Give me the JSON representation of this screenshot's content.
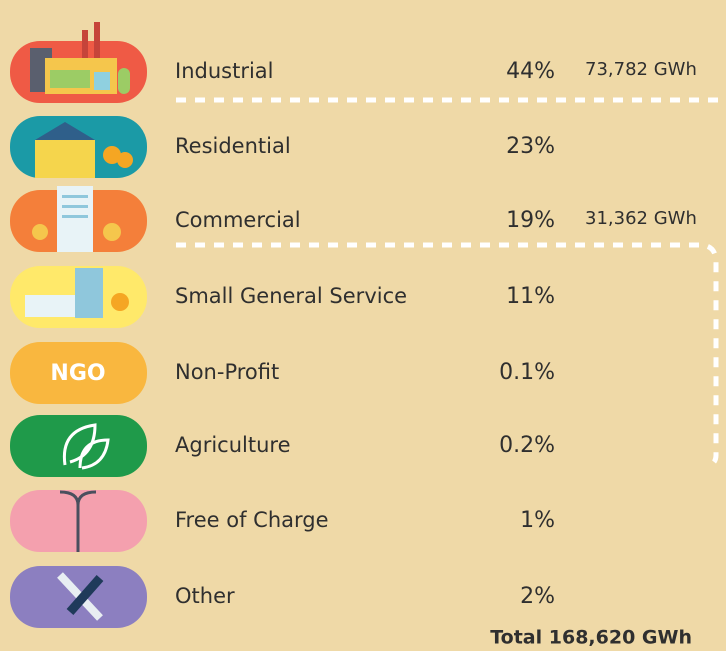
{
  "icons": {
    "ngo_text": "NGO"
  },
  "rows": [
    {
      "label": "Industrial",
      "percent": "44%",
      "gwh": "73,782 GWh"
    },
    {
      "label": "Residential",
      "percent": "23%"
    },
    {
      "label": "Commercial",
      "percent": "19%",
      "gwh": "31,362 GWh"
    },
    {
      "label": "Small General Service",
      "percent": "11%"
    },
    {
      "label": "Non-Profit",
      "percent": "0.1%"
    },
    {
      "label": "Agriculture",
      "percent": "0.2%"
    },
    {
      "label": "Free of Charge",
      "percent": "1%"
    },
    {
      "label": "Other",
      "percent": "2%"
    }
  ],
  "total": "Total 168,620 GWh"
}
